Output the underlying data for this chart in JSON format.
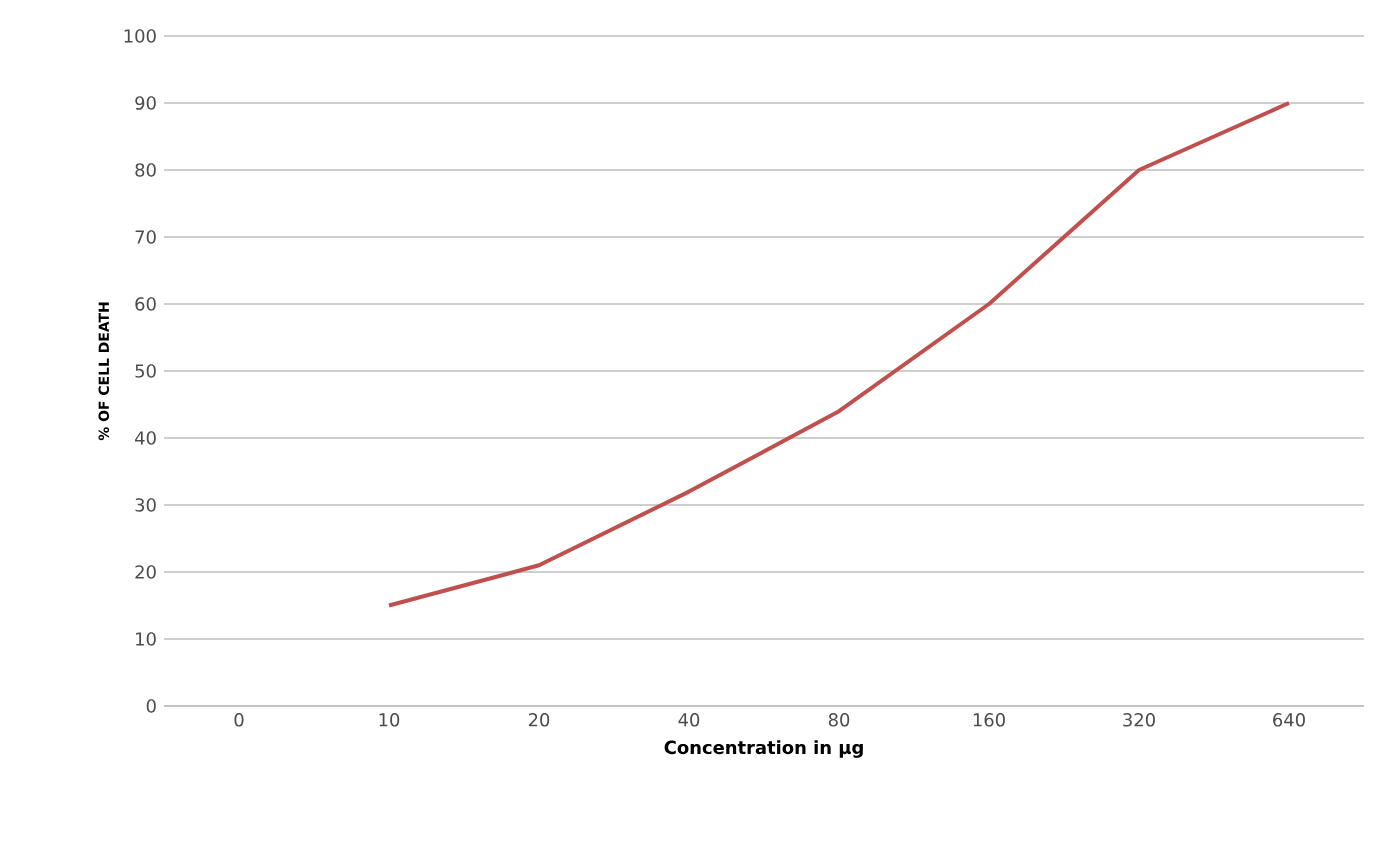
{
  "chart_data": {
    "type": "line",
    "xlabel": "Concentration in µg",
    "ylabel": "% OF CELL DEATH",
    "categories": [
      "0",
      "10",
      "20",
      "40",
      "80",
      "160",
      "320",
      "640"
    ],
    "series": [
      {
        "color": "#c0504d",
        "values": [
          null,
          15,
          21,
          32,
          44,
          60,
          80,
          90
        ]
      }
    ],
    "ylim": [
      0,
      100
    ],
    "yticks": [
      0,
      10,
      20,
      30,
      40,
      50,
      60,
      70,
      80,
      90,
      100
    ],
    "grid": "y"
  }
}
